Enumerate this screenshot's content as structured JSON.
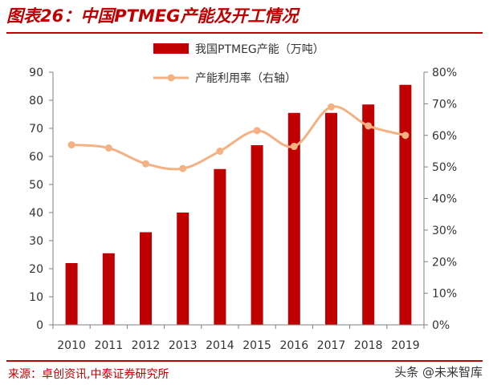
{
  "header": {
    "title": "图表26：中国PTMEG产能及开工情况"
  },
  "footer": {
    "source": "来源：卓创资讯,中泰证券研究所",
    "watermark": "头条 @未来智库"
  },
  "chart_data": {
    "type": "bar",
    "categories": [
      "2010",
      "2011",
      "2012",
      "2013",
      "2014",
      "2015",
      "2016",
      "2017",
      "2018",
      "2019"
    ],
    "series": [
      {
        "name": "我国PTMEG产能（万吨）",
        "type": "bar",
        "axis": "left",
        "color": "#c00000",
        "values": [
          22,
          25.5,
          33,
          40,
          55.5,
          64,
          75.5,
          75.5,
          78.5,
          85.5
        ]
      },
      {
        "name": "产能利用率（右轴）",
        "type": "line",
        "axis": "right",
        "color": "#f4b183",
        "values": [
          0.57,
          0.56,
          0.51,
          0.495,
          0.55,
          0.615,
          0.565,
          0.69,
          0.63,
          0.6
        ]
      }
    ],
    "ylim": [
      0,
      90
    ],
    "y_ticks": [
      "0",
      "10",
      "20",
      "30",
      "40",
      "50",
      "60",
      "70",
      "80",
      "90"
    ],
    "y2lim": [
      0,
      0.8
    ],
    "y2_ticks": [
      "0%",
      "10%",
      "20%",
      "30%",
      "40%",
      "50%",
      "60%",
      "70%",
      "80%"
    ],
    "grid": false,
    "legend": "top-center"
  }
}
